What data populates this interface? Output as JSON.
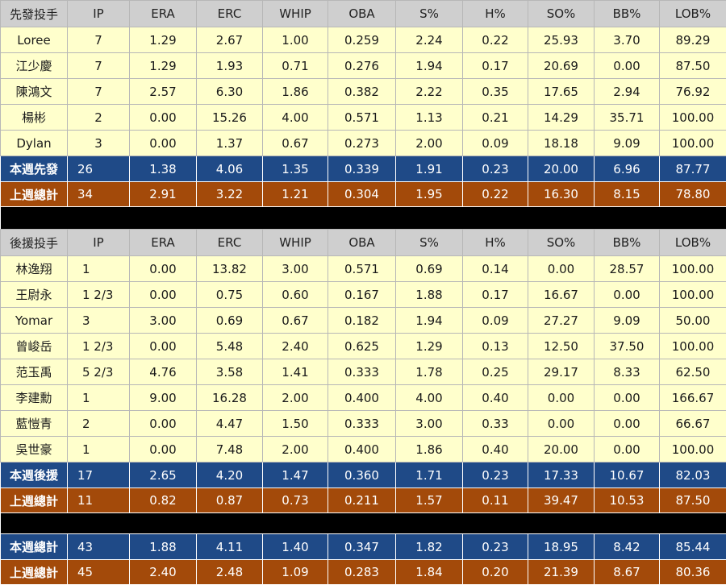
{
  "columns": [
    "IP",
    "ERA",
    "ERC",
    "WHIP",
    "OBA",
    "S%",
    "H%",
    "SO%",
    "BB%",
    "LOB%"
  ],
  "starters": {
    "header": "先發投手",
    "rows": [
      {
        "name": "Loree",
        "v": [
          "7",
          "1.29",
          "2.67",
          "1.00",
          "0.259",
          "2.24",
          "0.22",
          "25.93",
          "3.70",
          "89.29"
        ]
      },
      {
        "name": "江少慶",
        "v": [
          "7",
          "1.29",
          "1.93",
          "0.71",
          "0.276",
          "1.94",
          "0.17",
          "20.69",
          "0.00",
          "87.50"
        ]
      },
      {
        "name": "陳鴻文",
        "v": [
          "7",
          "2.57",
          "6.30",
          "1.86",
          "0.382",
          "2.22",
          "0.35",
          "17.65",
          "2.94",
          "76.92"
        ]
      },
      {
        "name": "楊彬",
        "v": [
          "2",
          "0.00",
          "15.26",
          "4.00",
          "0.571",
          "1.13",
          "0.21",
          "14.29",
          "35.71",
          "100.00"
        ]
      },
      {
        "name": "Dylan",
        "v": [
          "3",
          "0.00",
          "1.37",
          "0.67",
          "0.273",
          "2.00",
          "0.09",
          "18.18",
          "9.09",
          "100.00"
        ]
      }
    ],
    "week_total": {
      "label": "本週先發",
      "v": [
        "26",
        "1.38",
        "4.06",
        "1.35",
        "0.339",
        "1.91",
        "0.23",
        "20.00",
        "6.96",
        "87.77"
      ]
    },
    "last_week": {
      "label": "上週總計",
      "v": [
        "34",
        "2.91",
        "3.22",
        "1.21",
        "0.304",
        "1.95",
        "0.22",
        "16.30",
        "8.15",
        "78.80"
      ]
    }
  },
  "relievers": {
    "header": "後援投手",
    "rows": [
      {
        "name": "林逸翔",
        "v": [
          "1",
          "0.00",
          "13.82",
          "3.00",
          "0.571",
          "0.69",
          "0.14",
          "0.00",
          "28.57",
          "100.00"
        ]
      },
      {
        "name": "王尉永",
        "v": [
          "1 2/3",
          "0.00",
          "0.75",
          "0.60",
          "0.167",
          "1.88",
          "0.17",
          "16.67",
          "0.00",
          "100.00"
        ]
      },
      {
        "name": "Yomar",
        "v": [
          "3",
          "3.00",
          "0.69",
          "0.67",
          "0.182",
          "1.94",
          "0.09",
          "27.27",
          "9.09",
          "50.00"
        ]
      },
      {
        "name": "曾峻岳",
        "v": [
          "1 2/3",
          "0.00",
          "5.48",
          "2.40",
          "0.625",
          "1.29",
          "0.13",
          "12.50",
          "37.50",
          "100.00"
        ]
      },
      {
        "name": "范玉禹",
        "v": [
          "5 2/3",
          "4.76",
          "3.58",
          "1.41",
          "0.333",
          "1.78",
          "0.25",
          "29.17",
          "8.33",
          "62.50"
        ]
      },
      {
        "name": "李建勳",
        "v": [
          "1",
          "9.00",
          "16.28",
          "2.00",
          "0.400",
          "4.00",
          "0.40",
          "0.00",
          "0.00",
          "166.67"
        ]
      },
      {
        "name": "藍愷青",
        "v": [
          "2",
          "0.00",
          "4.47",
          "1.50",
          "0.333",
          "3.00",
          "0.33",
          "0.00",
          "0.00",
          "66.67"
        ]
      },
      {
        "name": "吳世豪",
        "v": [
          "1",
          "0.00",
          "7.48",
          "2.00",
          "0.400",
          "1.86",
          "0.40",
          "20.00",
          "0.00",
          "100.00"
        ]
      }
    ],
    "week_total": {
      "label": "本週後援",
      "v": [
        "17",
        "2.65",
        "4.20",
        "1.47",
        "0.360",
        "1.71",
        "0.23",
        "17.33",
        "10.67",
        "82.03"
      ]
    },
    "last_week": {
      "label": "上週總計",
      "v": [
        "11",
        "0.82",
        "0.87",
        "0.73",
        "0.211",
        "1.57",
        "0.11",
        "39.47",
        "10.53",
        "87.50"
      ]
    }
  },
  "totals": {
    "week_total": {
      "label": "本週總計",
      "v": [
        "43",
        "1.88",
        "4.11",
        "1.40",
        "0.347",
        "1.82",
        "0.23",
        "18.95",
        "8.42",
        "85.44"
      ]
    },
    "last_week": {
      "label": "上週總計",
      "v": [
        "45",
        "2.40",
        "2.48",
        "1.09",
        "0.283",
        "1.84",
        "0.20",
        "21.39",
        "8.67",
        "80.36"
      ]
    }
  },
  "colors": {
    "header_bg": "#cfcfcf",
    "row_bg": "#ffffcc",
    "week_total_bg": "#1f4a87",
    "last_week_bg": "#a34a0a",
    "separator_bg": "#000000"
  }
}
